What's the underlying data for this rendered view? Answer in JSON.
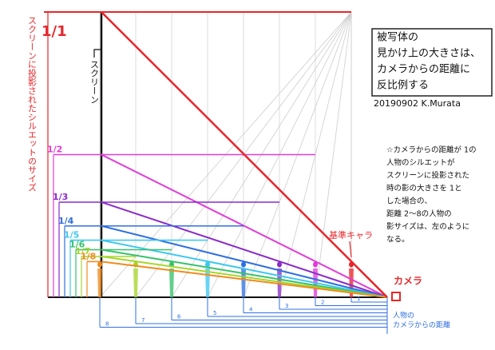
{
  "title_lines": [
    "被写体の",
    "見かけ上の大きさは、",
    "カメラからの距離に",
    "反比例する"
  ],
  "author": "20190902 K.Murata",
  "screen_size_label": "スクリーンに投影されたシルエットのサイズ",
  "screen_label": "スクリーン",
  "note_lines": [
    "☆カメラからの距離が 1の",
    "人物のシルエットが",
    "スクリーンに投影された",
    "時の影の大きさを 1と",
    "した場合の、",
    "距離 2～8の人物の",
    "影サイズは、左のように",
    "なる。"
  ],
  "reference_label": "基準キャラ",
  "camera_label": "カメラ",
  "distance_caption_lines": [
    "人物の",
    "カメラからの距離"
  ],
  "persons": [
    {
      "fraction": "1/1",
      "distance": "1",
      "color": "#e8262a"
    },
    {
      "fraction": "1/2",
      "distance": "2",
      "color": "#e23ad8"
    },
    {
      "fraction": "1/3",
      "distance": "3",
      "color": "#8a2bc9"
    },
    {
      "fraction": "1/4",
      "distance": "4",
      "color": "#2f6fe0"
    },
    {
      "fraction": "1/5",
      "distance": "5",
      "color": "#3cc8f0"
    },
    {
      "fraction": "1/6",
      "distance": "6",
      "color": "#34c26a"
    },
    {
      "fraction": "1/7",
      "distance": "7",
      "color": "#a6d62a"
    },
    {
      "fraction": "1/8",
      "distance": "8",
      "color": "#f08a1c"
    }
  ]
}
